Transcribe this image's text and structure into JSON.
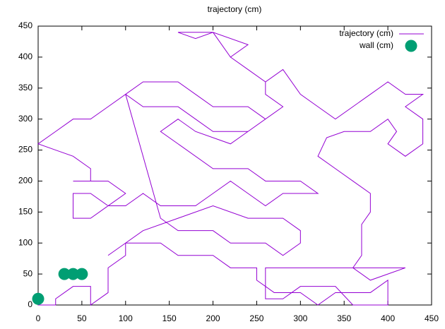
{
  "chart_data": {
    "type": "line",
    "title": "trajectory (cm)",
    "xlim": [
      0,
      450
    ],
    "xticks": [
      0,
      50,
      100,
      150,
      200,
      250,
      300,
      350,
      400,
      450
    ],
    "ylim": [
      0,
      450
    ],
    "yticks": [
      0,
      50,
      100,
      150,
      200,
      250,
      300,
      350,
      400,
      450
    ],
    "legend": "top-right",
    "series": [
      {
        "name": "trajectory (cm)",
        "type": "line",
        "color": "#9400d3",
        "x": [
          0,
          20,
          20,
          40,
          60,
          60,
          80,
          80,
          100,
          100,
          140,
          160,
          200,
          220,
          250,
          250,
          270,
          300,
          320,
          340,
          380,
          400,
          400,
          360,
          340,
          300,
          280,
          260,
          260,
          300,
          340,
          380,
          420,
          400,
          380,
          360,
          370,
          370,
          380,
          380,
          360,
          340,
          320,
          330,
          350,
          380,
          400,
          410,
          400,
          420,
          440,
          440,
          420,
          440,
          420,
          400,
          380,
          360,
          340,
          320,
          300,
          280,
          260,
          240,
          220,
          240,
          200,
          180,
          160,
          200,
          220,
          260,
          260,
          280,
          240,
          200,
          180,
          160,
          120,
          100,
          120,
          160,
          180,
          200,
          240,
          260,
          240,
          220,
          180,
          160,
          140,
          160,
          200,
          240,
          260,
          300,
          320,
          280,
          260,
          240,
          220,
          200,
          180,
          140,
          120,
          100,
          80,
          60,
          40,
          40,
          60,
          80,
          100,
          80,
          40,
          60,
          60,
          40,
          20,
          0,
          20,
          40,
          60,
          80,
          100,
          140,
          160,
          200,
          220,
          260,
          280,
          300,
          300,
          280,
          240,
          200,
          160,
          120,
          100,
          80
        ],
        "y": [
          0,
          0,
          10,
          30,
          30,
          0,
          20,
          60,
          80,
          100,
          100,
          80,
          80,
          60,
          60,
          40,
          20,
          20,
          0,
          20,
          20,
          40,
          0,
          0,
          30,
          30,
          10,
          10,
          60,
          60,
          60,
          60,
          60,
          50,
          40,
          60,
          80,
          130,
          150,
          180,
          200,
          220,
          240,
          270,
          280,
          280,
          300,
          280,
          260,
          240,
          260,
          300,
          320,
          340,
          340,
          360,
          340,
          320,
          300,
          320,
          340,
          380,
          360,
          380,
          400,
          420,
          440,
          430,
          440,
          440,
          400,
          360,
          340,
          320,
          280,
          280,
          300,
          320,
          320,
          340,
          360,
          360,
          340,
          320,
          320,
          300,
          280,
          260,
          280,
          300,
          280,
          260,
          220,
          220,
          200,
          200,
          180,
          180,
          160,
          180,
          200,
          180,
          160,
          160,
          180,
          160,
          160,
          180,
          180,
          140,
          140,
          160,
          180,
          200,
          200,
          200,
          220,
          240,
          250,
          260,
          280,
          300,
          300,
          320,
          340,
          140,
          120,
          120,
          100,
          100,
          80,
          100,
          120,
          140,
          140,
          160,
          140,
          120,
          100,
          80
        ]
      },
      {
        "name": "wall (cm)",
        "type": "scatter",
        "color": "#009e73",
        "x": [
          0,
          30,
          40,
          50
        ],
        "y": [
          10,
          50,
          50,
          50
        ]
      }
    ]
  }
}
